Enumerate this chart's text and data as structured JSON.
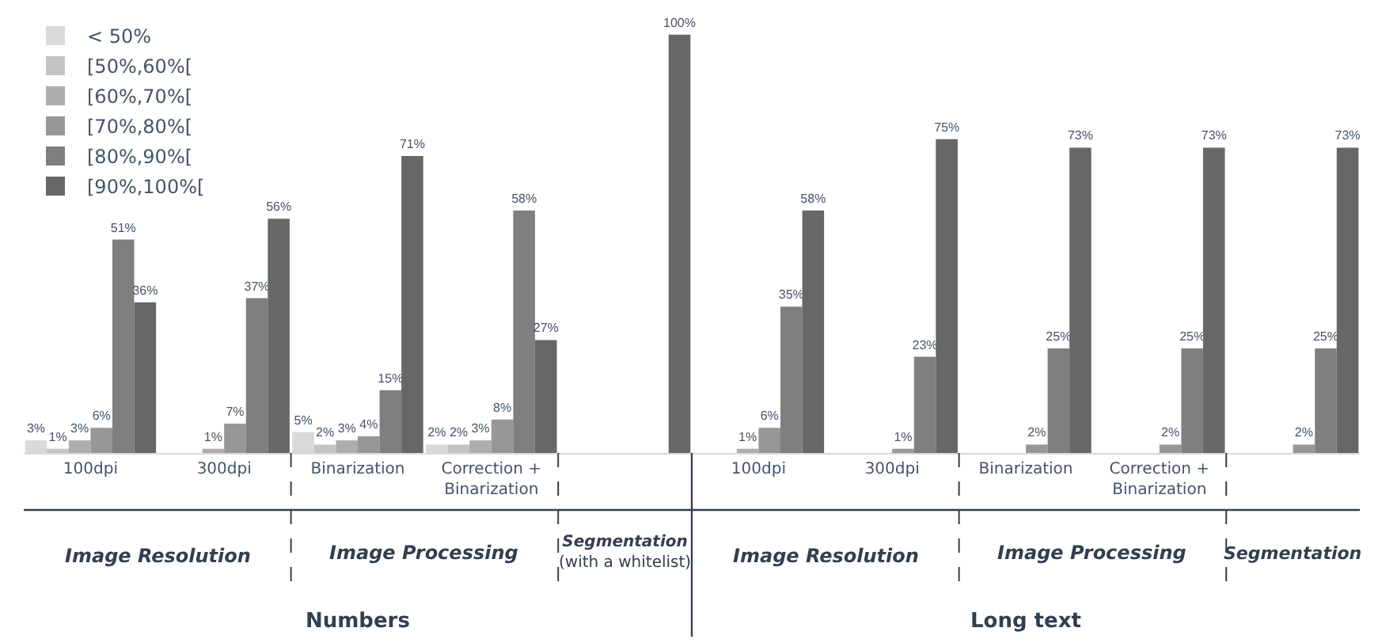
{
  "chart_data": {
    "type": "bar",
    "categories": [
      "100dpi",
      "300dpi",
      "Binarization",
      "Correction +\nBinarization",
      null,
      "100dpi",
      "300dpi",
      "Binarization",
      "Correction +\nBinarization",
      null
    ],
    "series": [
      {
        "name": "< 50%",
        "color": "#d9d9d9",
        "values": [
          3,
          0,
          5,
          2,
          0,
          0,
          0,
          0,
          0,
          0
        ],
        "value_labels": [
          "3%",
          null,
          "5%",
          "2%",
          null,
          null,
          null,
          null,
          null,
          null
        ]
      },
      {
        "name": "[50%,60%[",
        "color": "#c4c4c4",
        "values": [
          1,
          0,
          2,
          2,
          0,
          0,
          0,
          0,
          0,
          0
        ],
        "value_labels": [
          "1%",
          null,
          "2%",
          "2%",
          null,
          null,
          null,
          null,
          null,
          null
        ]
      },
      {
        "name": "[60%,70%[",
        "color": "#adadad",
        "values": [
          3,
          1,
          3,
          3,
          0,
          1,
          0,
          0,
          0,
          0
        ],
        "value_labels": [
          "3%",
          "1%",
          "3%",
          "3%",
          null,
          "1%",
          null,
          null,
          null,
          null
        ]
      },
      {
        "name": "[70%,80%[",
        "color": "#979797",
        "values": [
          6,
          7,
          4,
          8,
          0,
          6,
          1,
          2,
          2,
          2
        ],
        "value_labels": [
          "6%",
          "7%",
          "4%",
          "8%",
          null,
          "6%",
          "1%",
          "2%",
          "2%",
          "2%"
        ]
      },
      {
        "name": "[80%,90%[",
        "color": "#7f7f7f",
        "values": [
          51,
          37,
          15,
          58,
          0,
          35,
          23,
          25,
          25,
          25
        ],
        "value_labels": [
          "51%",
          "37%",
          "15%",
          "58%",
          null,
          "35%",
          "23%",
          "25%",
          "25%",
          "25%"
        ]
      },
      {
        "name": "[90%,100%[",
        "color": "#676767",
        "values": [
          36,
          56,
          71,
          27,
          100,
          58,
          75,
          73,
          73,
          73
        ],
        "value_labels": [
          "36%",
          "56%",
          "71%",
          "27%",
          "100%",
          "58%",
          "75%",
          "73%",
          "73%",
          "73%"
        ]
      }
    ],
    "annotations": [
      "Image Resolution",
      "Image Processing",
      "Segmentation\n(with a whitelist)",
      "Image Resolution",
      "Image Processing",
      "Segmentation",
      "Numbers",
      "Long text"
    ],
    "legend": "top left"
  }
}
